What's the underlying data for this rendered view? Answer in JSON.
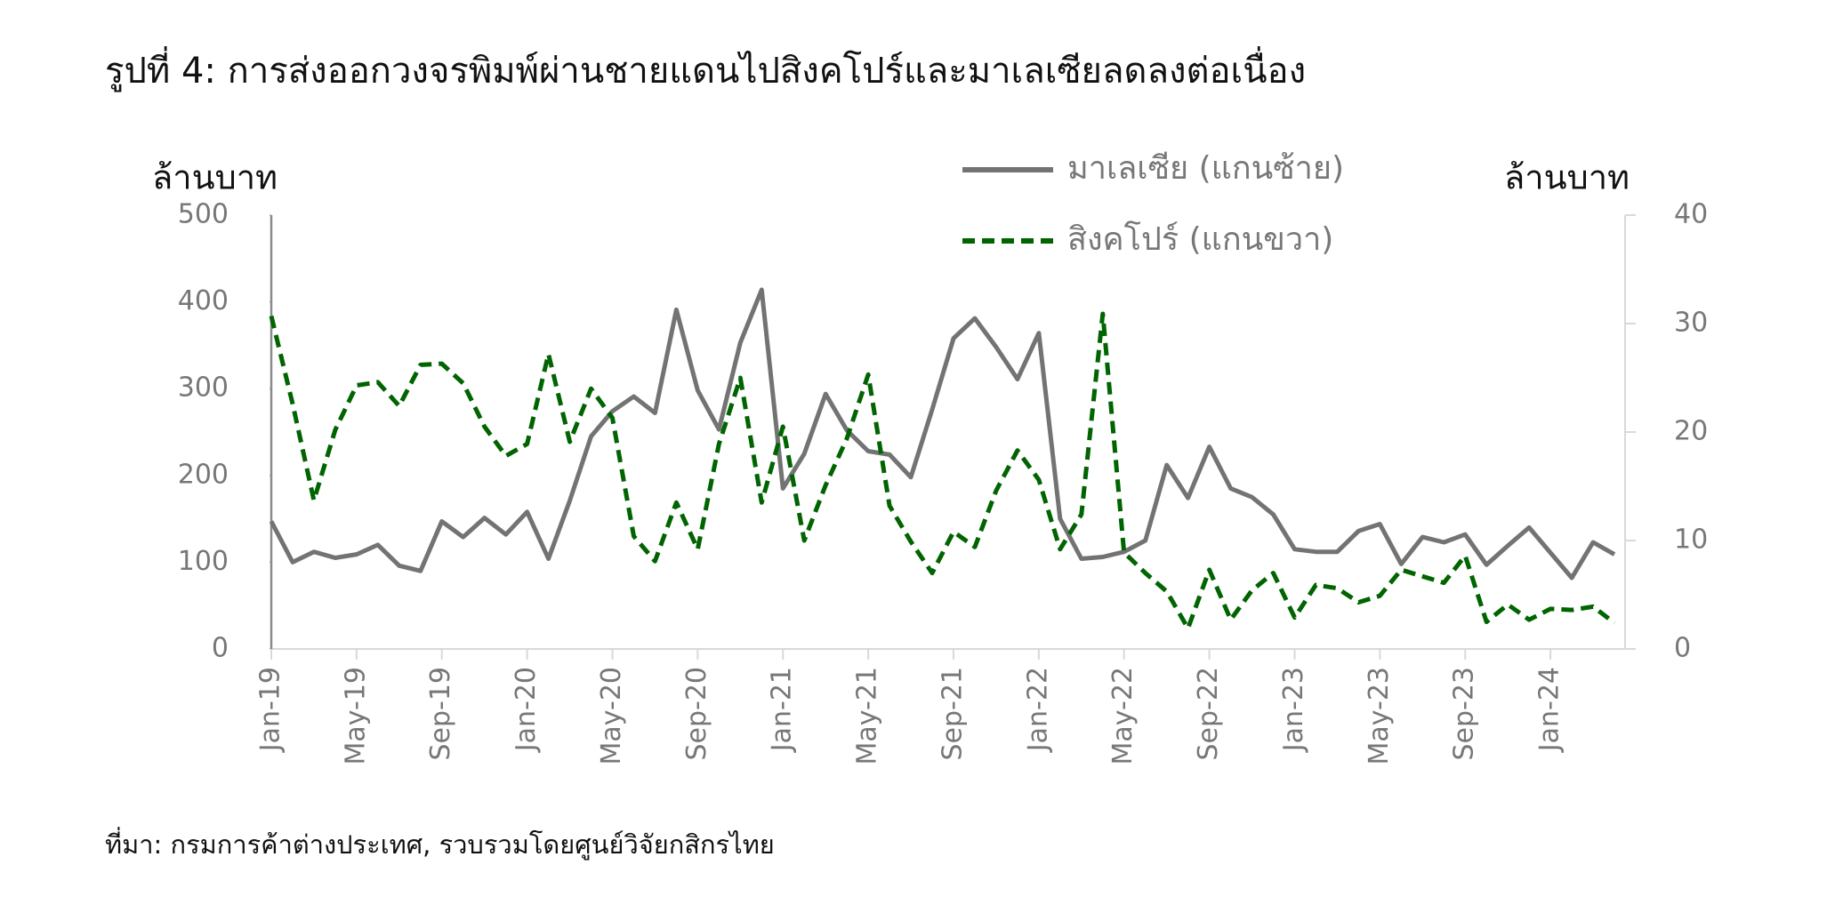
{
  "chart_data": {
    "type": "line",
    "title": "รูปที่ 4: การส่งออกวงจรพิมพ์ผ่านชายแดนไปสิงคโปร์และมาเลเซียลดลงต่อเนื่อง",
    "y_label": "ล้านบาท",
    "y2_label": "ล้านบาท",
    "source": "ที่มา: กรมการค้าต่างประเทศ, รวบรวมโดยศูนย์วิจัยกสิกรไทย",
    "categories": [
      "Jan-19",
      null,
      null,
      null,
      "May-19",
      null,
      null,
      null,
      "Sep-19",
      null,
      null,
      null,
      "Jan-20",
      null,
      null,
      null,
      "May-20",
      null,
      null,
      null,
      "Sep-20",
      null,
      null,
      null,
      "Jan-21",
      null,
      null,
      null,
      "May-21",
      null,
      null,
      null,
      "Sep-21",
      null,
      null,
      null,
      "Jan-22",
      null,
      null,
      null,
      "May-22",
      null,
      null,
      null,
      "Sep-22",
      null,
      null,
      null,
      "Jan-23",
      null,
      null,
      null,
      "May-23",
      null,
      null,
      null,
      "Sep-23",
      null,
      null,
      null,
      "Jan-24",
      null,
      null,
      null
    ],
    "series": [
      {
        "name": "มาเลเซีย (แกนซ้าย)",
        "color": "#737373",
        "style": "solid",
        "axis": "y",
        "values": [
          147,
          100,
          112,
          105,
          109,
          120,
          96,
          90,
          147,
          129,
          151,
          132,
          158,
          104,
          171,
          245,
          274,
          291,
          272,
          391,
          298,
          253,
          353,
          414,
          185,
          225,
          294,
          252,
          228,
          224,
          198,
          276,
          358,
          381,
          348,
          311,
          364,
          150,
          104,
          106,
          112,
          125,
          212,
          174,
          233,
          185,
          175,
          155,
          115,
          112,
          112,
          136,
          144,
          98,
          129,
          123,
          132,
          97,
          119,
          140,
          111,
          82,
          123,
          109
        ]
      },
      {
        "name": "สิงคโปร์ (แกนขวา)",
        "color": "#006400",
        "style": "dashed",
        "axis": "y2",
        "values": [
          30.7,
          22.6,
          13.7,
          20.2,
          24.3,
          24.6,
          22.4,
          26.2,
          26.3,
          24.5,
          20.5,
          17.8,
          18.9,
          27.2,
          19.1,
          24.0,
          21.3,
          10.4,
          8.1,
          13.5,
          9.2,
          18.9,
          25.0,
          13.5,
          20.5,
          10.0,
          15.1,
          19.4,
          25.3,
          13.2,
          9.9,
          7.0,
          10.8,
          9.4,
          14.6,
          18.3,
          15.6,
          9.2,
          12.4,
          30.9,
          8.9,
          7.0,
          5.3,
          1.9,
          7.3,
          2.7,
          5.4,
          7.0,
          2.9,
          5.9,
          5.6,
          4.3,
          4.9,
          7.3,
          6.7,
          6.1,
          8.6,
          2.5,
          4.1,
          2.7,
          3.7,
          3.6,
          3.9,
          2.4
        ]
      }
    ],
    "ylim": [
      0,
      500
    ],
    "yticks": [
      0,
      100,
      200,
      300,
      400,
      500
    ],
    "y2lim": [
      0,
      40
    ],
    "y2ticks": [
      0,
      10,
      20,
      30,
      40
    ]
  }
}
